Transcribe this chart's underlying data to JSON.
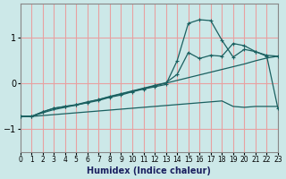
{
  "xlabel": "Humidex (Indice chaleur)",
  "bg_color": "#cce8e8",
  "grid_color": "#e8a0a0",
  "line_color": "#1a6060",
  "xlim": [
    0,
    23
  ],
  "ylim": [
    -1.5,
    1.75
  ],
  "yticks": [
    -1,
    0,
    1
  ],
  "xticks": [
    0,
    1,
    2,
    3,
    4,
    5,
    6,
    7,
    8,
    9,
    10,
    11,
    12,
    13,
    14,
    15,
    16,
    17,
    18,
    19,
    20,
    21,
    22,
    23
  ],
  "line_flat_x": [
    0,
    1,
    2,
    3,
    4,
    5,
    6,
    7,
    8,
    9,
    10,
    11,
    12,
    13,
    14,
    15,
    16,
    17,
    18,
    19,
    20,
    21,
    22,
    23
  ],
  "line_flat_y": [
    -0.72,
    -0.72,
    -0.7,
    -0.68,
    -0.66,
    -0.64,
    -0.62,
    -0.6,
    -0.58,
    -0.56,
    -0.54,
    -0.52,
    -0.5,
    -0.48,
    -0.46,
    -0.44,
    -0.42,
    -0.4,
    -0.38,
    -0.5,
    -0.52,
    -0.5,
    -0.5,
    -0.5
  ],
  "line_diag_x": [
    0,
    1,
    2,
    3,
    4,
    5,
    6,
    7,
    8,
    9,
    10,
    11,
    12,
    13,
    14,
    15,
    16,
    17,
    18,
    19,
    20,
    21,
    22,
    23
  ],
  "line_diag_y": [
    -0.72,
    -0.72,
    -0.64,
    -0.57,
    -0.52,
    -0.47,
    -0.41,
    -0.35,
    -0.29,
    -0.23,
    -0.17,
    -0.11,
    -0.05,
    0.01,
    0.07,
    0.13,
    0.19,
    0.25,
    0.31,
    0.37,
    0.43,
    0.5,
    0.56,
    0.6
  ],
  "line_peak_x": [
    0,
    1,
    2,
    3,
    4,
    5,
    6,
    7,
    8,
    9,
    10,
    11,
    12,
    13,
    14,
    15,
    16,
    17,
    18,
    19,
    20,
    21,
    22,
    23
  ],
  "line_peak_y": [
    -0.72,
    -0.72,
    -0.62,
    -0.54,
    -0.5,
    -0.47,
    -0.42,
    -0.37,
    -0.3,
    -0.25,
    -0.18,
    -0.12,
    -0.07,
    -0.02,
    0.5,
    1.32,
    1.4,
    1.38,
    0.95,
    0.58,
    0.75,
    0.7,
    0.62,
    0.6
  ],
  "line_drop_x": [
    0,
    1,
    2,
    3,
    4,
    5,
    6,
    7,
    8,
    9,
    10,
    11,
    12,
    13,
    14,
    15,
    16,
    17,
    18,
    19,
    20,
    21,
    22,
    23
  ],
  "line_drop_y": [
    -0.72,
    -0.72,
    -0.62,
    -0.54,
    -0.5,
    -0.46,
    -0.4,
    -0.35,
    -0.28,
    -0.22,
    -0.16,
    -0.1,
    -0.04,
    0.02,
    0.2,
    0.68,
    0.55,
    0.62,
    0.6,
    0.88,
    0.83,
    0.7,
    0.6,
    -0.55
  ]
}
